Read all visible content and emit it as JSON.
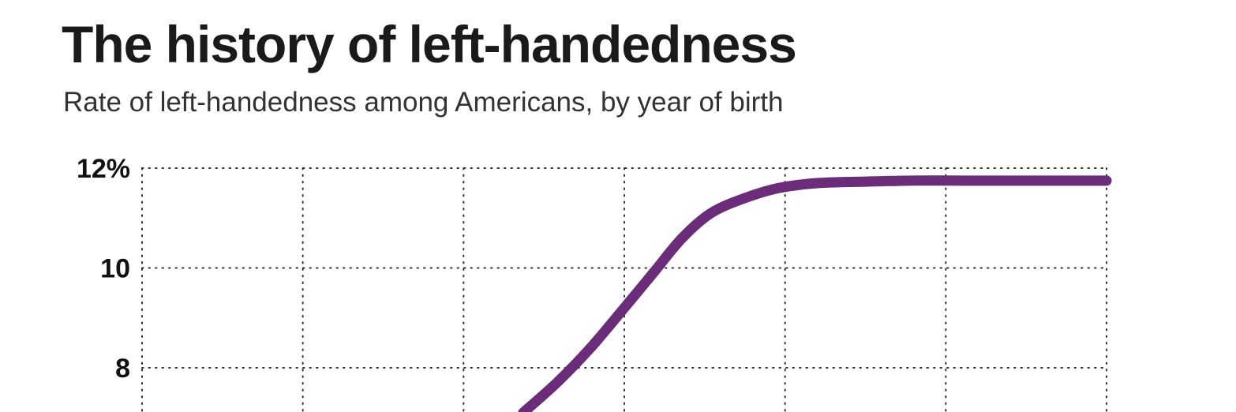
{
  "title": "The history of left-handedness",
  "subtitle": "Rate of left-handedness among Americans, by year of birth",
  "chart_data": {
    "type": "line",
    "title": "The history of left-handedness",
    "subtitle": "Rate of left-handedness among Americans, by year of birth",
    "xlabel": "",
    "ylabel": "",
    "ylim": [
      8,
      12
    ],
    "y_ticks": [
      {
        "value": 12,
        "label": "12%"
      },
      {
        "value": 10,
        "label": "10"
      },
      {
        "value": 8,
        "label": "8"
      }
    ],
    "x_gridlines": 7,
    "grid": "dotted",
    "line_color": "#6b2c7a",
    "series": [
      {
        "values_y": [
          7.1,
          7.7,
          8.4,
          9.2,
          9.9,
          10.6,
          11.1,
          11.4,
          11.6,
          11.7,
          11.73,
          11.75,
          11.75,
          11.75,
          11.75
        ],
        "x_fraction": [
          0.395,
          0.43,
          0.465,
          0.5,
          0.53,
          0.56,
          0.59,
          0.625,
          0.66,
          0.7,
          0.75,
          0.8,
          0.85,
          0.9,
          1.0
        ]
      }
    ]
  }
}
